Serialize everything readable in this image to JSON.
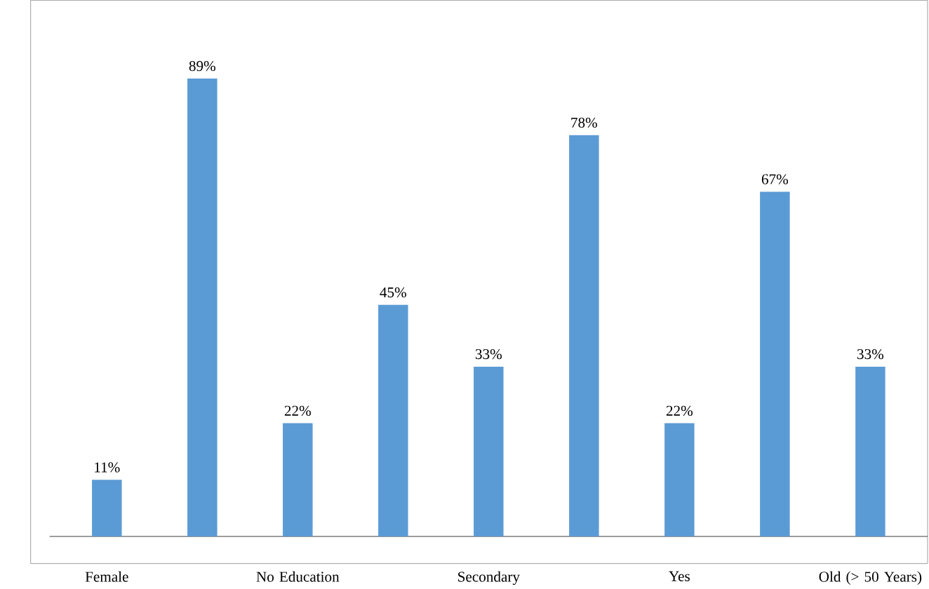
{
  "chart_data": {
    "type": "bar",
    "categories": [
      "Female",
      null,
      "No Education",
      null,
      "Secondary",
      null,
      "Yes",
      null,
      "Old (> 50 Years)"
    ],
    "values": [
      11,
      89,
      22,
      45,
      33,
      78,
      22,
      67,
      33
    ],
    "value_labels": [
      "11%",
      "89%",
      "22%",
      "45%",
      "33%",
      "78%",
      "22%",
      "67%",
      "33%"
    ],
    "color": "#5b9bd5"
  }
}
